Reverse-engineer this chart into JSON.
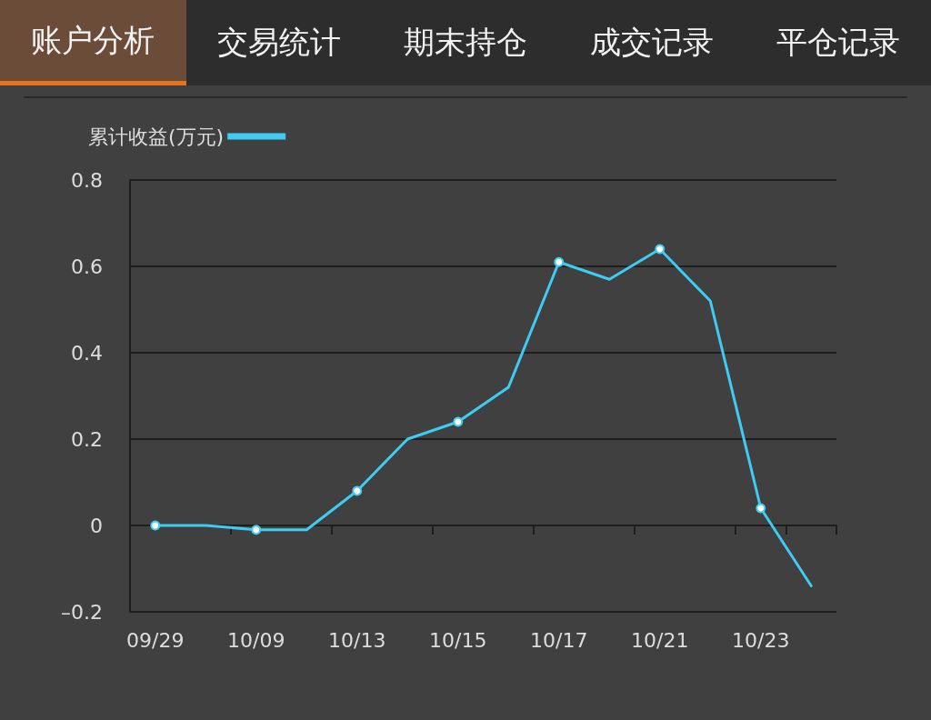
{
  "chart_data": {
    "type": "line",
    "annotations": [
      "账户分析",
      "交易统计",
      "期末持仓",
      "成交记录",
      "平仓记录"
    ],
    "categories": [
      "09/29",
      null,
      "10/09",
      null,
      "10/13",
      null,
      "10/15",
      null,
      "10/17",
      null,
      "10/21",
      null,
      "10/23",
      null
    ],
    "series": [
      {
        "name": "累计收益(万元)",
        "color": "#3ecbf4",
        "values": [
          0.0,
          0.0,
          -0.01,
          -0.01,
          0.08,
          0.2,
          0.24,
          0.32,
          0.61,
          0.57,
          0.64,
          0.52,
          0.04,
          -0.14
        ]
      }
    ],
    "ylim": [
      -0.2,
      0.8
    ],
    "yticks": [
      {
        "value": -0.2,
        "label": "–0.2"
      },
      0,
      0.2,
      0.4,
      0.6,
      0.8
    ],
    "grid": "y",
    "legend": "top left",
    "marker": "circle",
    "line_style": "solid"
  }
}
